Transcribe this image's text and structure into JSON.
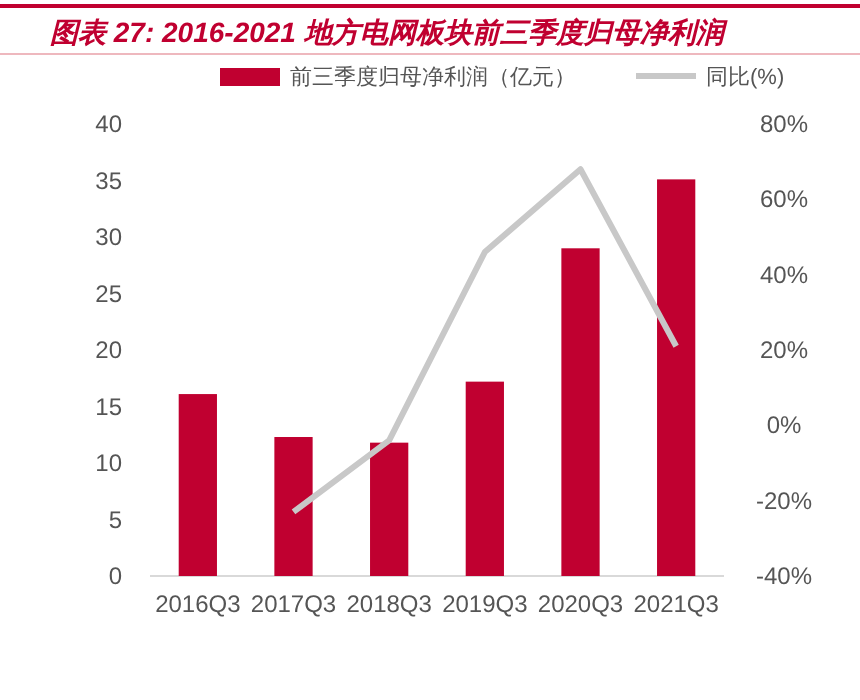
{
  "chart_data": {
    "type": "bar",
    "title": "图表 27: 2016-2021 地方电网板块前三季度归母净利润",
    "categories": [
      "2016Q3",
      "2017Q3",
      "2018Q3",
      "2019Q3",
      "2020Q3",
      "2021Q3"
    ],
    "series": [
      {
        "name": "前三季度归母净利润（亿元）",
        "color": "#c00030",
        "values": [
          16.1,
          12.3,
          11.8,
          17.2,
          29.0,
          35.1
        ]
      },
      {
        "name": "同比(%)",
        "type": "line",
        "axis": "y2",
        "color": "#c8c8c8",
        "values": [
          null,
          -23,
          -4,
          46,
          68,
          21
        ]
      }
    ],
    "ylim": [
      0,
      40
    ],
    "yticks": [
      0,
      5,
      10,
      15,
      20,
      25,
      30,
      35,
      40
    ],
    "y2lim": [
      -40,
      80
    ],
    "y2ticks": [
      {
        "value": -40,
        "label": "-40%"
      },
      {
        "value": -20,
        "label": "-20%"
      },
      {
        "value": 0,
        "label": "0%"
      },
      {
        "value": 20,
        "label": "20%"
      },
      {
        "value": 40,
        "label": "40%"
      },
      {
        "value": 60,
        "label": "60%"
      },
      {
        "value": 80,
        "label": "80%"
      }
    ],
    "legend": "top",
    "grid": false
  }
}
